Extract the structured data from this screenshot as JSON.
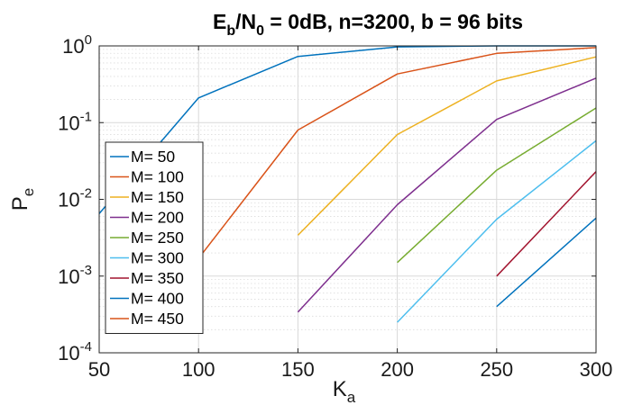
{
  "chart_data": {
    "type": "line",
    "title": {
      "parts": [
        {
          "text": "E",
          "style": "normal"
        },
        {
          "text": "b",
          "style": "sub"
        },
        {
          "text": "/N",
          "style": "normal"
        },
        {
          "text": "0",
          "style": "sub"
        },
        {
          "text": " = 0dB, n=3200, b = 96 bits",
          "style": "normal"
        }
      ]
    },
    "xlabel": {
      "main": "K",
      "sub": "a"
    },
    "ylabel": {
      "main": "P",
      "sub": "e"
    },
    "x_scale": "linear",
    "y_scale": "log",
    "xlim": [
      50,
      300
    ],
    "ylim": [
      0.0001,
      1
    ],
    "x_ticks": [
      50,
      100,
      150,
      200,
      250,
      300
    ],
    "x_tick_labels": [
      "50",
      "100",
      "150",
      "200",
      "250",
      "300"
    ],
    "y_ticks": [
      {
        "value": 0.0001,
        "base": "10",
        "exp": "-4"
      },
      {
        "value": 0.001,
        "base": "10",
        "exp": "-3"
      },
      {
        "value": 0.01,
        "base": "10",
        "exp": "-2"
      },
      {
        "value": 0.1,
        "base": "10",
        "exp": "-1"
      },
      {
        "value": 1,
        "base": "10",
        "exp": "0"
      }
    ],
    "grid": true,
    "minor_grid": true,
    "legend_position": "bottom-left",
    "series": [
      {
        "name": "M= 50",
        "color": "#0072BD",
        "x": [
          50,
          100,
          150,
          200,
          250,
          300
        ],
        "y": [
          0.0065,
          0.21,
          0.73,
          0.97,
          1.0,
          1.0
        ]
      },
      {
        "name": "M= 100",
        "color": "#D95319",
        "x": [
          100,
          150,
          200,
          250,
          300
        ],
        "y": [
          0.0017,
          0.08,
          0.43,
          0.8,
          0.95
        ]
      },
      {
        "name": "M= 150",
        "color": "#EDB120",
        "x": [
          150,
          200,
          250,
          300
        ],
        "y": [
          0.0034,
          0.07,
          0.35,
          0.72
        ]
      },
      {
        "name": "M= 200",
        "color": "#7E2F8E",
        "x": [
          150,
          200,
          250,
          300
        ],
        "y": [
          0.00034,
          0.0085,
          0.11,
          0.38
        ]
      },
      {
        "name": "M= 250",
        "color": "#77AC30",
        "x": [
          200,
          250,
          300
        ],
        "y": [
          0.0015,
          0.024,
          0.155
        ]
      },
      {
        "name": "M= 300",
        "color": "#4DBEEE",
        "x": [
          200,
          250,
          300
        ],
        "y": [
          0.00025,
          0.0055,
          0.058
        ]
      },
      {
        "name": "M= 350",
        "color": "#A2142F",
        "x": [
          250,
          300
        ],
        "y": [
          0.001,
          0.023
        ]
      },
      {
        "name": "M= 400",
        "color": "#0072BD",
        "x": [
          250,
          300
        ],
        "y": [
          0.0004,
          0.0057
        ]
      },
      {
        "name": "M= 450",
        "color": "#D95319",
        "x": [],
        "y": []
      }
    ]
  }
}
